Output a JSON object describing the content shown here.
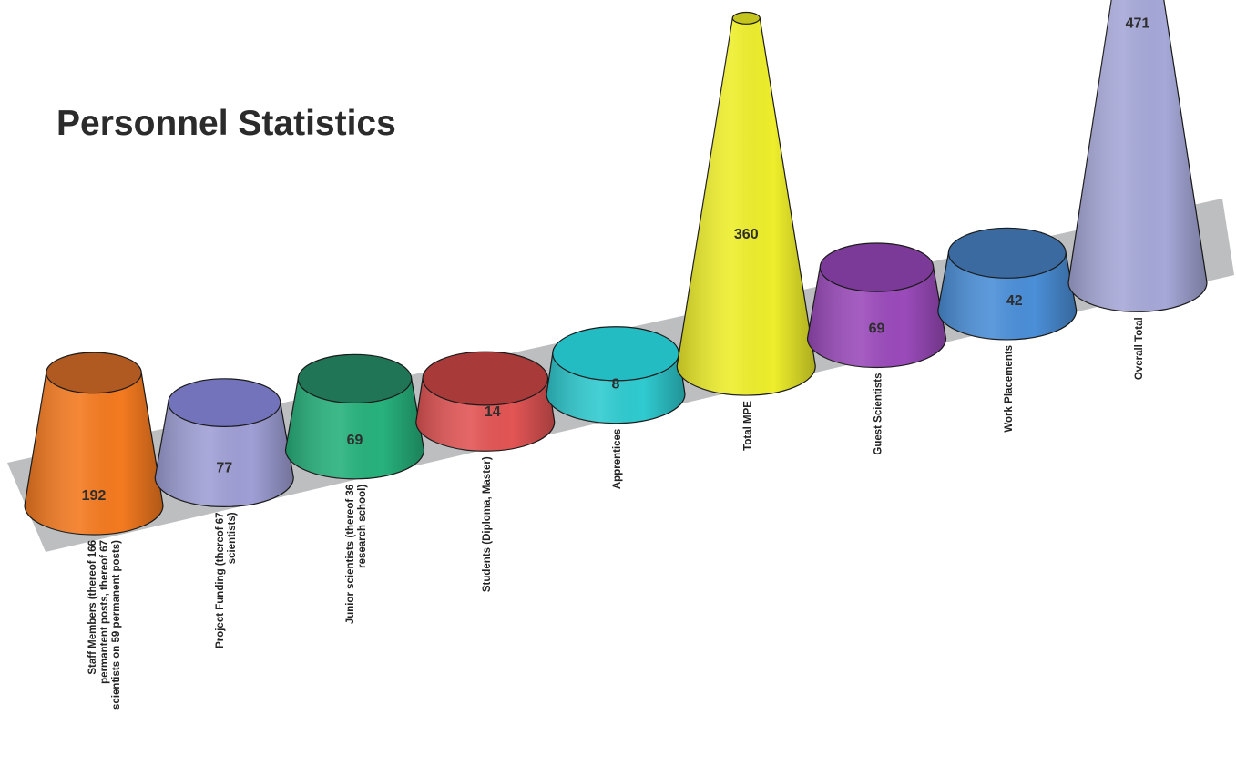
{
  "chart_data": {
    "type": "bar",
    "title": "Personnel Statistics",
    "xlabel": "",
    "ylabel": "",
    "categories": [
      "Staff Members (thereof 166 permantent posts, thereof 67 scientists on 59 permanent posts)",
      "Project Funding (thereof 67 scientists)",
      "Junior scientists (thereof 36 research school)",
      "Students (Diploma, Master)",
      "Apprentices",
      "Total MPE",
      "Guest Scientists",
      "Work Placements",
      "Overall Total"
    ],
    "values": [
      192,
      77,
      69,
      14,
      8,
      360,
      69,
      42,
      471
    ],
    "value_labels": [
      "192",
      "77",
      "69",
      "14",
      "8",
      "360",
      "69",
      "42",
      "471"
    ],
    "colors": [
      "#f47a20",
      "#9f9fd6",
      "#27b27c",
      "#e35555",
      "#2fcbd0",
      "#eeee2c",
      "#9b4bbb",
      "#4b8fd8",
      "#a6a8d8"
    ],
    "top_colors": [
      "#b05a22",
      "#7373bb",
      "#1f7556",
      "#a93a3a",
      "#22bcc2",
      "#c4c41e",
      "#7c3a98",
      "#3a6aa0",
      "#8e90c6"
    ],
    "grid": false,
    "legend": "none"
  }
}
